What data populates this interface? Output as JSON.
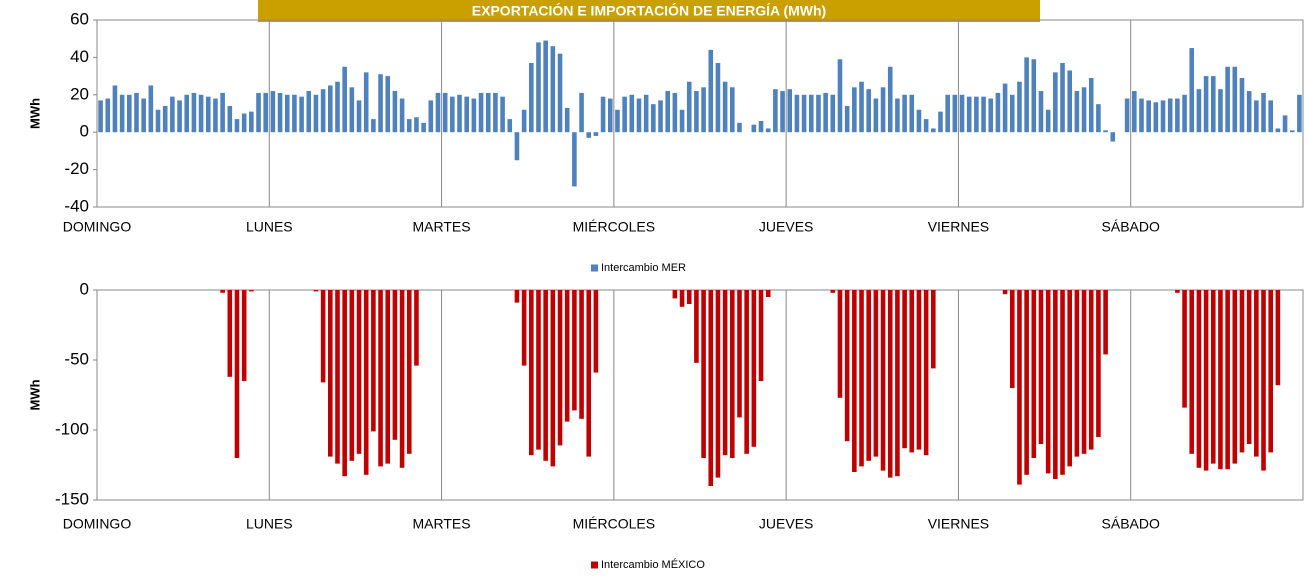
{
  "chart_data": [
    {
      "type": "bar",
      "title": "EXPORTACIÓN E IMPORTACIÓN DE ENERGÍA (MWh)",
      "ylabel": "MWh",
      "categories": [
        "DOMINGO",
        null,
        null,
        null,
        null,
        null,
        null,
        null,
        null,
        null,
        null,
        null,
        null,
        null,
        null,
        null,
        null,
        null,
        null,
        null,
        null,
        null,
        null,
        null,
        "LUNES",
        null,
        null,
        null,
        null,
        null,
        null,
        null,
        null,
        null,
        null,
        null,
        null,
        null,
        null,
        null,
        null,
        null,
        null,
        null,
        null,
        null,
        null,
        null,
        "MARTES",
        null,
        null,
        null,
        null,
        null,
        null,
        null,
        null,
        null,
        null,
        null,
        null,
        null,
        null,
        null,
        null,
        null,
        null,
        null,
        null,
        null,
        null,
        null,
        "MIÉRCOLES",
        null,
        null,
        null,
        null,
        null,
        null,
        null,
        null,
        null,
        null,
        null,
        null,
        null,
        null,
        null,
        null,
        null,
        null,
        null,
        null,
        null,
        null,
        null,
        "JUEVES",
        null,
        null,
        null,
        null,
        null,
        null,
        null,
        null,
        null,
        null,
        null,
        null,
        null,
        null,
        null,
        null,
        null,
        null,
        null,
        null,
        null,
        null,
        null,
        "VIERNES",
        null,
        null,
        null,
        null,
        null,
        null,
        null,
        null,
        null,
        null,
        null,
        null,
        null,
        null,
        null,
        null,
        null,
        null,
        null,
        null,
        null,
        null,
        null,
        "SÁBADO",
        null,
        null,
        null,
        null,
        null,
        null,
        null,
        null,
        null,
        null,
        null,
        null,
        null,
        null,
        null,
        null,
        null,
        null,
        null,
        null,
        null,
        null,
        null
      ],
      "series": [
        {
          "name": "Intercambio MER",
          "color": "#4f81bd",
          "values": [
            17,
            18,
            25,
            20,
            20,
            21,
            18,
            25,
            12,
            14,
            19,
            17,
            20,
            21,
            20,
            19,
            18,
            21,
            14,
            7,
            10,
            11,
            21,
            21,
            22,
            21,
            20,
            20,
            19,
            22,
            20,
            23,
            25,
            27,
            35,
            24,
            17,
            32,
            7,
            31,
            30,
            22,
            18,
            7,
            8,
            5,
            17,
            21,
            21,
            19,
            20,
            19,
            18,
            21,
            21,
            21,
            19,
            7,
            -15,
            12,
            37,
            48,
            49,
            46,
            42,
            13,
            -29,
            21,
            -3,
            -2,
            19,
            18,
            12,
            19,
            20,
            18,
            20,
            15,
            17,
            22,
            21,
            12,
            27,
            22,
            24,
            44,
            37,
            27,
            24,
            5,
            0,
            4,
            6,
            2,
            23,
            22,
            23,
            20,
            20,
            20,
            20,
            21,
            20,
            39,
            14,
            24,
            27,
            23,
            18,
            24,
            35,
            18,
            20,
            20,
            12,
            7,
            2,
            11,
            20,
            20,
            20,
            19,
            19,
            19,
            18,
            21,
            26,
            20,
            27,
            40,
            39,
            22,
            12,
            32,
            37,
            33,
            22,
            24,
            29,
            15,
            1,
            -5,
            0,
            18,
            22,
            18,
            17,
            16,
            17,
            18,
            18,
            20,
            45,
            23,
            30,
            30,
            23,
            35,
            35,
            29,
            22,
            17,
            21,
            17,
            2,
            9,
            1,
            20
          ]
        }
      ],
      "ylim": [
        -40,
        60
      ],
      "yticks": [
        60,
        40,
        20,
        0,
        -20,
        -40
      ]
    },
    {
      "type": "bar",
      "ylabel": "MWh",
      "categories": [
        "DOMINGO",
        null,
        null,
        null,
        null,
        null,
        null,
        null,
        null,
        null,
        null,
        null,
        null,
        null,
        null,
        null,
        null,
        null,
        null,
        null,
        null,
        null,
        null,
        null,
        "LUNES",
        null,
        null,
        null,
        null,
        null,
        null,
        null,
        null,
        null,
        null,
        null,
        null,
        null,
        null,
        null,
        null,
        null,
        null,
        null,
        null,
        null,
        null,
        null,
        "MARTES",
        null,
        null,
        null,
        null,
        null,
        null,
        null,
        null,
        null,
        null,
        null,
        null,
        null,
        null,
        null,
        null,
        null,
        null,
        null,
        null,
        null,
        null,
        null,
        "MIÉRCOLES",
        null,
        null,
        null,
        null,
        null,
        null,
        null,
        null,
        null,
        null,
        null,
        null,
        null,
        null,
        null,
        null,
        null,
        null,
        null,
        null,
        null,
        null,
        null,
        "JUEVES",
        null,
        null,
        null,
        null,
        null,
        null,
        null,
        null,
        null,
        null,
        null,
        null,
        null,
        null,
        null,
        null,
        null,
        null,
        null,
        null,
        null,
        null,
        null,
        "VIERNES",
        null,
        null,
        null,
        null,
        null,
        null,
        null,
        null,
        null,
        null,
        null,
        null,
        null,
        null,
        null,
        null,
        null,
        null,
        null,
        null,
        null,
        null,
        null,
        "SÁBADO",
        null,
        null,
        null,
        null,
        null,
        null,
        null,
        null,
        null,
        null,
        null,
        null,
        null,
        null,
        null,
        null,
        null,
        null,
        null,
        null,
        null,
        null,
        null
      ],
      "series": [
        {
          "name": "Intercambio MÉXICO",
          "color": "#c00000",
          "values": [
            0,
            0,
            0,
            0,
            0,
            0,
            0,
            0,
            0,
            0,
            0,
            0,
            0,
            0,
            0,
            0,
            0,
            -2,
            -62,
            -120,
            -65,
            -1,
            0,
            0,
            0,
            0,
            0,
            0,
            0,
            0,
            -1,
            -66,
            -119,
            -124,
            -133,
            -122,
            -117,
            -132,
            -101,
            -126,
            -124,
            -107,
            -127,
            -117,
            -54,
            0,
            0,
            0,
            0,
            0,
            0,
            0,
            0,
            0,
            0,
            0,
            0,
            0,
            -9,
            -54,
            -118,
            -114,
            -122,
            -126,
            -111,
            -94,
            -86,
            -92,
            -119,
            -59,
            0,
            0,
            0,
            0,
            0,
            0,
            0,
            0,
            0,
            0,
            -6,
            -12,
            -10,
            -52,
            -120,
            -140,
            -134,
            -118,
            -120,
            -91,
            -117,
            -112,
            -65,
            -5,
            0,
            0,
            0,
            0,
            0,
            0,
            0,
            0,
            -2,
            -77,
            -108,
            -130,
            -126,
            -122,
            -119,
            -129,
            -134,
            -133,
            -113,
            -116,
            -114,
            -118,
            -56,
            0,
            0,
            0,
            0,
            0,
            0,
            0,
            0,
            0,
            -3,
            -70,
            -139,
            -132,
            -120,
            -110,
            -131,
            -135,
            -132,
            -126,
            -119,
            -117,
            -114,
            -105,
            -46,
            0,
            0,
            0,
            0,
            0,
            0,
            0,
            0,
            0,
            -2,
            -84,
            -117,
            -127,
            -129,
            -124,
            -128,
            -128,
            -124,
            -116,
            -110,
            -119,
            -129,
            -116,
            -68,
            0,
            0,
            0
          ]
        }
      ],
      "ylim": [
        -150,
        0
      ],
      "yticks": [
        0,
        -50,
        -100,
        -150
      ]
    }
  ]
}
